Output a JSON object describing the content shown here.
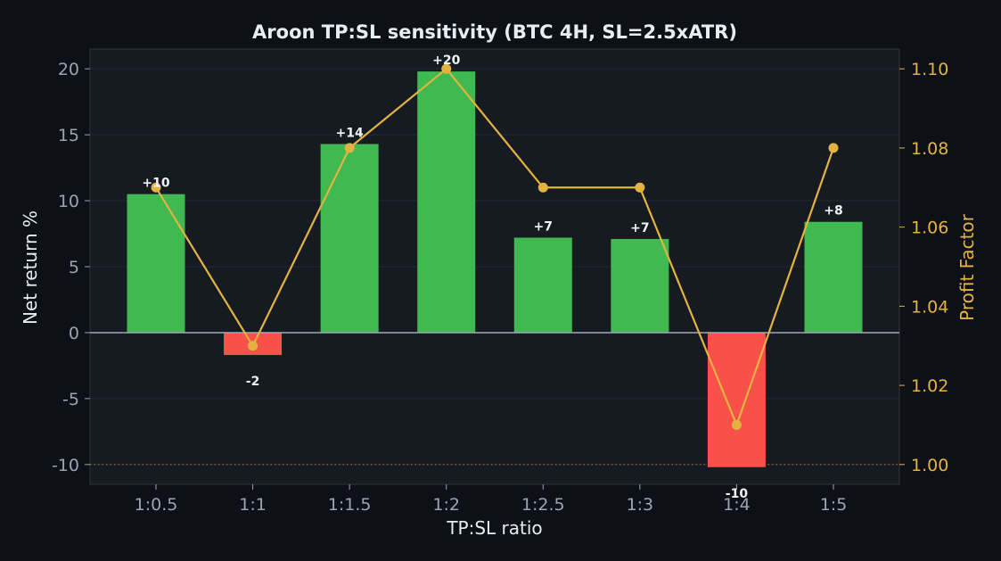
{
  "chart_data": {
    "type": "bar",
    "title": "Aroon TP:SL sensitivity (BTC 4H, SL=2.5xATR)",
    "xlabel": "TP:SL ratio",
    "ylabel": "Net return %",
    "y2label": "Profit Factor",
    "categories": [
      "1:0.5",
      "1:1",
      "1:1.5",
      "1:2",
      "1:2.5",
      "1:3",
      "1:4",
      "1:5"
    ],
    "series": [
      {
        "axis": "left",
        "kind": "bar",
        "values": [
          10.5,
          -1.7,
          14.3,
          19.8,
          7.2,
          7.1,
          -10.2,
          8.4
        ],
        "data_labels": [
          "+10",
          "-2",
          "+14",
          "+20",
          "+7",
          "+7",
          "-10",
          "+8"
        ]
      },
      {
        "axis": "right",
        "kind": "line",
        "values": [
          1.07,
          1.03,
          1.08,
          1.1,
          1.07,
          1.07,
          1.01,
          1.08
        ]
      }
    ],
    "ylim": [
      -11.5,
      21.5
    ],
    "yticks": [
      -10,
      -5,
      0,
      5,
      10,
      15,
      20
    ],
    "ytick_labels": [
      "-10",
      "-5",
      "0",
      "5",
      "10",
      "15",
      "20"
    ],
    "y2lim": [
      0.995,
      1.105
    ],
    "y2ticks": [
      1.0,
      1.02,
      1.04,
      1.06,
      1.08,
      1.1
    ],
    "y2tick_labels": [
      "1.00",
      "1.02",
      "1.04",
      "1.06",
      "1.08",
      "1.10"
    ],
    "reference_line_y2": 1.0,
    "grid": true,
    "colors": {
      "positive_bar": "#3fb950",
      "negative_bar": "#f85149",
      "line": "#e3b341",
      "zero_line": "#a0a8b4",
      "reference_line": "#b07d3a",
      "plot_bg": "#161b22",
      "page_bg": "#0d1117"
    }
  }
}
